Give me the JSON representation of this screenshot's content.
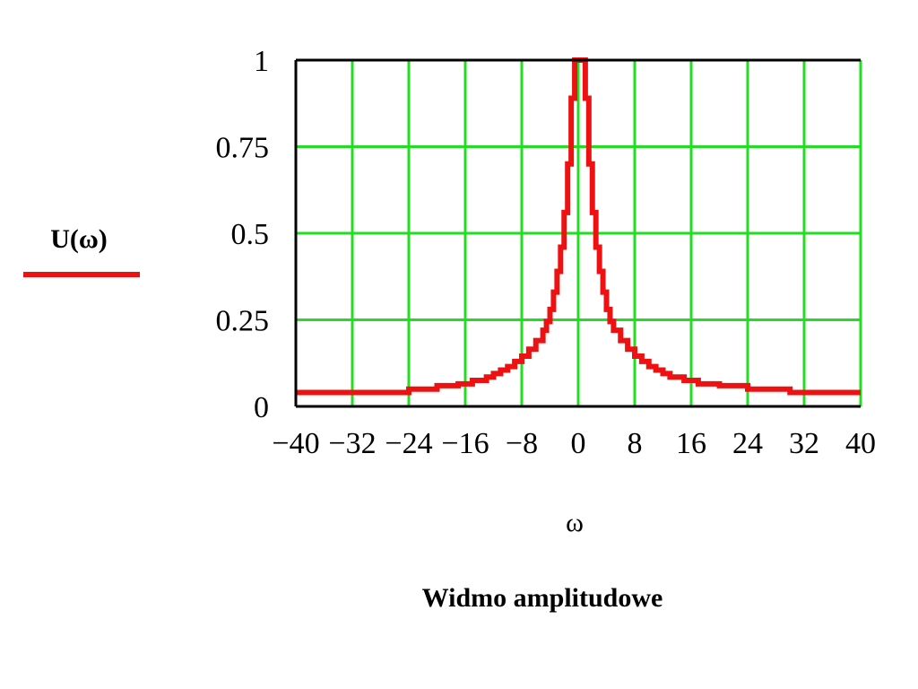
{
  "chart_data": {
    "type": "line",
    "title": "",
    "xlabel": "ω",
    "ylabel": "",
    "caption": "Widmo amplitudowe",
    "xlim": [
      -40,
      40
    ],
    "ylim": [
      0,
      1
    ],
    "x_ticks": [
      -40,
      -32,
      -24,
      -16,
      -8,
      0,
      8,
      16,
      24,
      32,
      40
    ],
    "x_tick_labels": [
      "−40",
      "−32",
      "−24",
      "−16",
      "−8",
      "0",
      "8",
      "16",
      "24",
      "32",
      "40"
    ],
    "y_ticks": [
      0,
      0.25,
      0.5,
      0.75,
      1
    ],
    "y_tick_labels": [
      "0",
      "0.25",
      "0.5",
      "0.75",
      "1"
    ],
    "grid": true,
    "colors": {
      "grid": "#22dd22",
      "series": "#ee1111",
      "axis": "#000000"
    },
    "legend": {
      "position": "left",
      "label": "U(ω)"
    },
    "series": [
      {
        "name": "U(ω)",
        "x": [
          -40,
          -30,
          -24,
          -20,
          -17,
          -15,
          -13,
          -12,
          -11,
          -10,
          -9,
          -8,
          -7,
          -6,
          -5,
          -4.5,
          -4,
          -3.5,
          -3,
          -2.5,
          -2,
          -1.5,
          -1,
          -0.5,
          0,
          0.5,
          1,
          1.5,
          2,
          2.5,
          3,
          3.5,
          4,
          4.5,
          5,
          6,
          7,
          8,
          9,
          10,
          11,
          12,
          13,
          15,
          17,
          20,
          24,
          30,
          40
        ],
        "y": [
          0.04,
          0.04,
          0.05,
          0.06,
          0.065,
          0.075,
          0.085,
          0.095,
          0.105,
          0.115,
          0.13,
          0.145,
          0.165,
          0.19,
          0.22,
          0.245,
          0.28,
          0.33,
          0.39,
          0.46,
          0.56,
          0.7,
          0.89,
          1.0,
          1.0,
          1.0,
          0.89,
          0.7,
          0.56,
          0.46,
          0.39,
          0.33,
          0.28,
          0.245,
          0.22,
          0.19,
          0.165,
          0.145,
          0.13,
          0.115,
          0.105,
          0.095,
          0.085,
          0.075,
          0.065,
          0.06,
          0.05,
          0.04,
          0.04
        ]
      }
    ]
  }
}
